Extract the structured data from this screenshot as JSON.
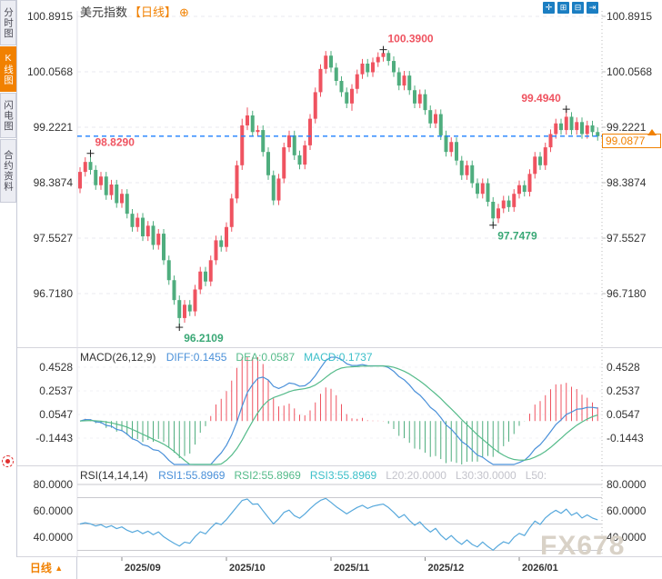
{
  "header": {
    "symbol": "美元指数",
    "period_tag": "【日线】",
    "add_icon": "⊕"
  },
  "sidebar": {
    "tabs": [
      {
        "label": "分时图",
        "active": false
      },
      {
        "label": "K线图",
        "active": true
      },
      {
        "label": "闪电图",
        "active": false
      },
      {
        "label": "合约资料",
        "active": false
      }
    ]
  },
  "toolbar": {
    "buttons": [
      {
        "name": "crosshair-tool-button",
        "glyph": "✛"
      },
      {
        "name": "indicator-pane-button",
        "glyph": "⊞"
      },
      {
        "name": "chart-pane-button",
        "glyph": "⊟"
      },
      {
        "name": "exit-chart-button",
        "glyph": "⇥"
      }
    ]
  },
  "colors": {
    "up": "#ef5360",
    "down": "#4fad7e",
    "high_label": "#ef5360",
    "low_label": "#3aa876",
    "price_line": "#1e80ff",
    "accent": "#f18101",
    "diff_line": "#4a90d9",
    "dea_line": "#55bb8a",
    "rsi_line": "#56a8dc",
    "grid": "#e9e9ef",
    "level_line": "#c9c9ce",
    "divider": "#d5d5dc",
    "toolbar_blue": "#1b7ec2",
    "axis_text": "#333333",
    "muted_text": "#c3c3cb",
    "watermark": "#d9d2c7"
  },
  "chart_data": {
    "type": "candlestick",
    "title": "美元指数 日线",
    "price_axis_labels": [
      "100.8915",
      "100.0568",
      "99.2221",
      "98.3874",
      "97.5527",
      "96.7180"
    ],
    "current_price": "99.0877",
    "x_axis": {
      "labels": [
        "2025/09",
        "2025/10",
        "2025/11",
        "2025/12",
        "2026/01"
      ],
      "indices": [
        8,
        28,
        48,
        66,
        84
      ]
    },
    "annotations": [
      {
        "label": "98.8290",
        "index": 2,
        "price": 98.829,
        "kind": "high",
        "placement": "right"
      },
      {
        "label": "96.2109",
        "index": 19,
        "price": 96.2109,
        "kind": "low",
        "placement": "right"
      },
      {
        "label": "100.3900",
        "index": 58,
        "price": 100.39,
        "kind": "high",
        "placement": "right"
      },
      {
        "label": "97.7479",
        "index": 79,
        "price": 97.7479,
        "kind": "low",
        "placement": "right"
      },
      {
        "label": "99.4940",
        "index": 93,
        "price": 99.494,
        "kind": "high",
        "placement": "left"
      }
    ],
    "candles": [
      [
        98.3,
        98.62,
        98.23,
        98.55
      ],
      [
        98.55,
        98.77,
        98.48,
        98.7
      ],
      [
        98.7,
        98.829,
        98.51,
        98.58
      ],
      [
        98.58,
        98.65,
        98.28,
        98.35
      ],
      [
        98.35,
        98.55,
        98.28,
        98.48
      ],
      [
        98.48,
        98.55,
        98.13,
        98.2
      ],
      [
        98.2,
        98.43,
        98.13,
        98.36
      ],
      [
        98.36,
        98.43,
        98.01,
        98.08
      ],
      [
        98.08,
        98.29,
        98.01,
        98.22
      ],
      [
        98.22,
        98.29,
        97.85,
        97.92
      ],
      [
        97.92,
        97.99,
        97.65,
        97.72
      ],
      [
        97.72,
        97.93,
        97.65,
        97.86
      ],
      [
        97.86,
        97.93,
        97.51,
        97.58
      ],
      [
        97.58,
        97.81,
        97.51,
        97.74
      ],
      [
        97.74,
        97.81,
        97.38,
        97.45
      ],
      [
        97.45,
        97.69,
        97.38,
        97.62
      ],
      [
        97.62,
        97.69,
        97.15,
        97.22
      ],
      [
        97.22,
        97.29,
        96.85,
        96.92
      ],
      [
        96.92,
        96.99,
        96.55,
        96.62
      ],
      [
        96.62,
        96.69,
        96.2109,
        96.35
      ],
      [
        96.35,
        96.62,
        96.28,
        96.55
      ],
      [
        96.55,
        96.62,
        96.38,
        96.45
      ],
      [
        96.45,
        96.85,
        96.38,
        96.78
      ],
      [
        96.78,
        97.12,
        96.71,
        97.05
      ],
      [
        97.05,
        97.12,
        96.83,
        96.9
      ],
      [
        96.9,
        97.29,
        96.83,
        97.22
      ],
      [
        97.22,
        97.59,
        97.15,
        97.52
      ],
      [
        97.52,
        97.59,
        97.35,
        97.42
      ],
      [
        97.42,
        97.79,
        97.35,
        97.72
      ],
      [
        97.72,
        98.22,
        97.65,
        98.15
      ],
      [
        98.15,
        98.72,
        98.08,
        98.65
      ],
      [
        98.65,
        99.35,
        98.58,
        99.25
      ],
      [
        99.25,
        99.52,
        99.18,
        99.4
      ],
      [
        99.4,
        99.47,
        99.08,
        99.15
      ],
      [
        99.15,
        99.25,
        99.08,
        99.18
      ],
      [
        99.18,
        99.25,
        98.78,
        98.85
      ],
      [
        98.85,
        98.92,
        98.43,
        98.5
      ],
      [
        98.5,
        98.57,
        98.05,
        98.12
      ],
      [
        98.12,
        98.52,
        98.05,
        98.45
      ],
      [
        98.45,
        98.99,
        98.38,
        98.92
      ],
      [
        98.92,
        99.17,
        98.85,
        99.1
      ],
      [
        99.1,
        99.17,
        98.73,
        98.8
      ],
      [
        98.8,
        98.87,
        98.59,
        98.66
      ],
      [
        98.66,
        99.02,
        98.59,
        98.95
      ],
      [
        98.95,
        99.42,
        98.88,
        99.35
      ],
      [
        99.35,
        99.82,
        99.28,
        99.75
      ],
      [
        99.75,
        100.17,
        99.68,
        100.1
      ],
      [
        100.1,
        100.37,
        100.03,
        100.3
      ],
      [
        100.3,
        100.37,
        100.05,
        100.12
      ],
      [
        100.12,
        100.19,
        99.85,
        99.92
      ],
      [
        99.92,
        99.99,
        99.68,
        99.75
      ],
      [
        99.75,
        99.82,
        99.51,
        99.58
      ],
      [
        99.58,
        99.87,
        99.47,
        99.8
      ],
      [
        99.8,
        100.09,
        99.73,
        100.02
      ],
      [
        100.02,
        100.25,
        99.95,
        100.18
      ],
      [
        100.18,
        100.25,
        99.98,
        100.05
      ],
      [
        100.05,
        100.27,
        99.98,
        100.2
      ],
      [
        100.2,
        100.35,
        100.13,
        100.28
      ],
      [
        100.28,
        100.39,
        100.21,
        100.34
      ],
      [
        100.34,
        100.38,
        100.15,
        100.22
      ],
      [
        100.22,
        100.29,
        99.98,
        100.05
      ],
      [
        100.05,
        100.12,
        99.78,
        99.85
      ],
      [
        99.85,
        100.07,
        99.78,
        100.0
      ],
      [
        100.0,
        100.07,
        99.71,
        99.78
      ],
      [
        99.78,
        99.85,
        99.51,
        99.58
      ],
      [
        99.58,
        99.79,
        99.51,
        99.72
      ],
      [
        99.72,
        99.79,
        99.41,
        99.48
      ],
      [
        99.48,
        99.55,
        99.21,
        99.28
      ],
      [
        99.28,
        99.49,
        99.21,
        99.42
      ],
      [
        99.42,
        99.49,
        99.03,
        99.1
      ],
      [
        99.1,
        99.17,
        98.78,
        98.85
      ],
      [
        98.85,
        99.07,
        98.78,
        99.0
      ],
      [
        99.0,
        99.07,
        98.65,
        98.72
      ],
      [
        98.72,
        98.79,
        98.43,
        98.5
      ],
      [
        98.5,
        98.72,
        98.43,
        98.65
      ],
      [
        98.65,
        98.72,
        98.31,
        98.38
      ],
      [
        98.38,
        98.45,
        98.15,
        98.22
      ],
      [
        98.22,
        98.45,
        98.15,
        98.38
      ],
      [
        98.38,
        98.45,
        98.03,
        98.1
      ],
      [
        98.1,
        98.17,
        97.7479,
        97.85
      ],
      [
        97.85,
        98.07,
        97.78,
        98.0
      ],
      [
        98.0,
        98.19,
        97.93,
        98.12
      ],
      [
        98.12,
        98.19,
        97.95,
        98.02
      ],
      [
        98.02,
        98.29,
        97.95,
        98.22
      ],
      [
        98.22,
        98.42,
        98.15,
        98.35
      ],
      [
        98.35,
        98.42,
        98.18,
        98.25
      ],
      [
        98.25,
        98.59,
        98.18,
        98.52
      ],
      [
        98.52,
        98.85,
        98.45,
        98.78
      ],
      [
        98.78,
        98.85,
        98.58,
        98.65
      ],
      [
        98.65,
        98.99,
        98.58,
        98.92
      ],
      [
        98.92,
        99.19,
        98.85,
        99.12
      ],
      [
        99.12,
        99.35,
        99.05,
        99.28
      ],
      [
        99.28,
        99.35,
        99.11,
        99.18
      ],
      [
        99.18,
        99.494,
        99.11,
        99.38
      ],
      [
        99.38,
        99.45,
        99.11,
        99.18
      ],
      [
        99.18,
        99.37,
        99.11,
        99.3
      ],
      [
        99.3,
        99.37,
        99.05,
        99.12
      ],
      [
        99.12,
        99.32,
        99.05,
        99.25
      ],
      [
        99.25,
        99.32,
        99.08,
        99.15
      ],
      [
        99.15,
        99.22,
        99.02,
        99.0877
      ]
    ],
    "macd": {
      "title": "MACD(26,12,9)",
      "params": [
        26,
        12,
        9
      ],
      "labels": [
        "DIFF:0.1455",
        "DEA:0.0587",
        "MACD:0.1737"
      ],
      "axis_labels": [
        "0.4528",
        "0.2537",
        "0.0547",
        "-0.1443"
      ]
    },
    "rsi": {
      "title": "RSI(14,14,14)",
      "params": [
        14,
        14,
        14
      ],
      "series_labels": [
        "RSI1:55.8969",
        "RSI2:55.8969",
        "RSI3:55.8969"
      ],
      "level_labels": [
        "L20:20.0000",
        "L30:30.0000",
        "L50:"
      ],
      "axis_labels": [
        "80.0000",
        "60.0000",
        "40.0000"
      ],
      "level_lines": [
        80,
        70,
        50,
        30
      ]
    }
  },
  "bottom": {
    "period_label": "日线",
    "arrow": "▲"
  },
  "watermark": "FX678"
}
